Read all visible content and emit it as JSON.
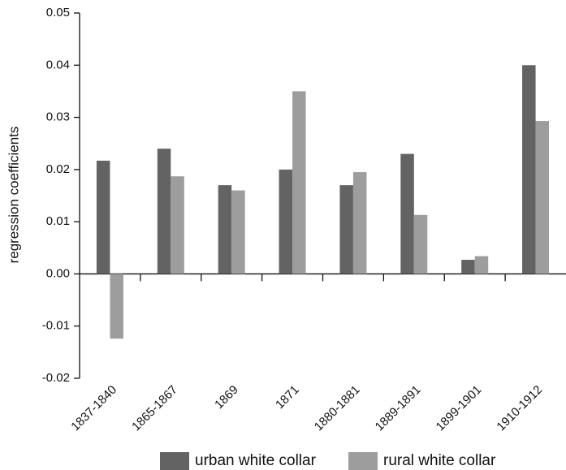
{
  "chart_data": {
    "type": "bar",
    "y_label": "regression coefficients",
    "categories": [
      "1837-1840",
      "1865-1867",
      "1869",
      "1871",
      "1880-1881",
      "1889-1891",
      "1899-1901",
      "1910-1912"
    ],
    "series": [
      {
        "name": "urban white collar",
        "color": "#636363",
        "values": [
          0.0217,
          0.024,
          0.017,
          0.02,
          0.017,
          0.023,
          0.0027,
          0.04
        ]
      },
      {
        "name": "rural white collar",
        "color": "#9d9d9e",
        "values": [
          -0.0124,
          0.0187,
          0.016,
          0.035,
          0.0195,
          0.0113,
          0.0034,
          0.0293
        ]
      }
    ],
    "ylim": [
      -0.02,
      0.05
    ],
    "yticks": [
      -0.02,
      -0.01,
      {
        "value": 0,
        "label": "0.00"
      },
      0.01,
      0.02,
      0.03,
      0.04,
      0.05
    ],
    "grid": false
  }
}
